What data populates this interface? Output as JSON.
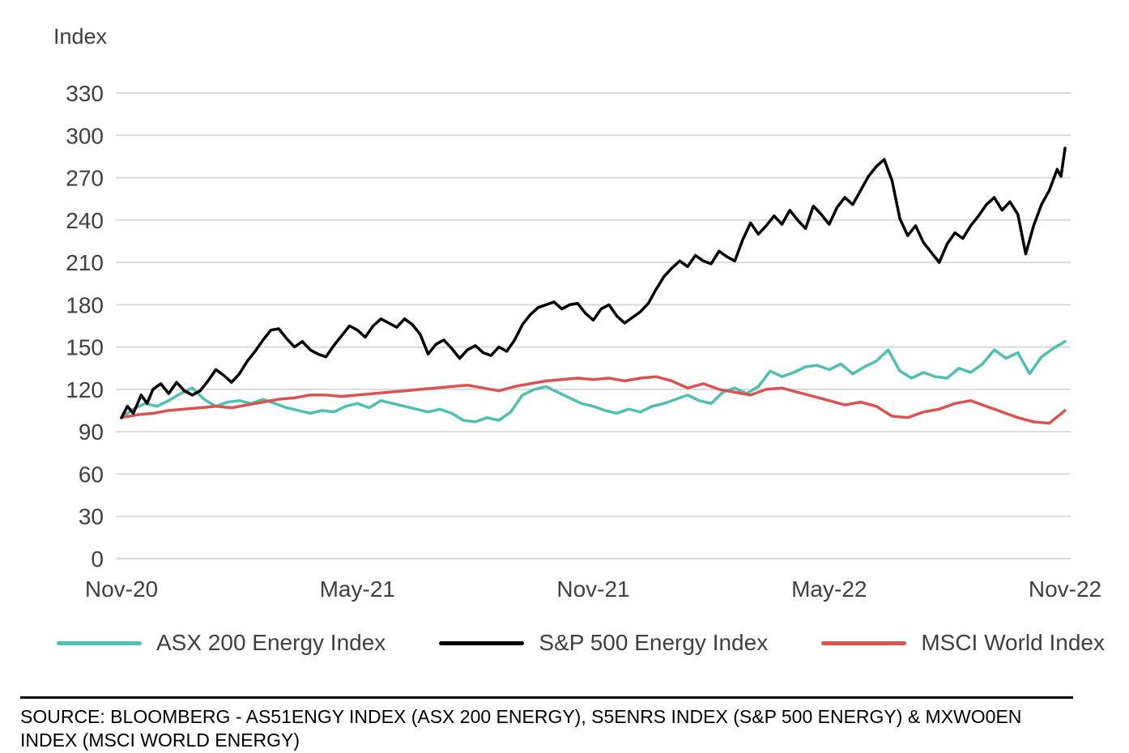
{
  "chart_data": {
    "type": "line",
    "title": "",
    "ylabel": "Index",
    "xlabel": "",
    "ylim": [
      0,
      330
    ],
    "ytick_step": 30,
    "xlim": [
      0,
      24
    ],
    "x_unit": "months-since-Nov-20",
    "grid": "horizontal",
    "legend_position": "bottom",
    "colors": {
      "grid": "#d9d9d9",
      "axis_text": "#404040"
    },
    "xticks": [
      {
        "pos": 0,
        "label": "Nov-20"
      },
      {
        "pos": 6,
        "label": "May-21"
      },
      {
        "pos": 12,
        "label": "Nov-21"
      },
      {
        "pos": 18,
        "label": "May-22"
      },
      {
        "pos": 24,
        "label": "Nov-22"
      }
    ],
    "draw_order": [
      0,
      2,
      1
    ],
    "series": [
      {
        "name": "ASX 200 Energy Index",
        "color": "#4fbfb2",
        "points": [
          [
            0,
            100
          ],
          [
            0.3,
            106
          ],
          [
            0.6,
            110
          ],
          [
            0.9,
            108
          ],
          [
            1.2,
            112
          ],
          [
            1.5,
            117
          ],
          [
            1.8,
            121
          ],
          [
            2.1,
            113
          ],
          [
            2.4,
            108
          ],
          [
            2.7,
            111
          ],
          [
            3,
            112
          ],
          [
            3.3,
            110
          ],
          [
            3.6,
            113
          ],
          [
            3.9,
            110
          ],
          [
            4.2,
            107
          ],
          [
            4.5,
            105
          ],
          [
            4.8,
            103
          ],
          [
            5.1,
            105
          ],
          [
            5.4,
            104
          ],
          [
            5.7,
            108
          ],
          [
            6,
            110
          ],
          [
            6.3,
            107
          ],
          [
            6.6,
            112
          ],
          [
            6.9,
            110
          ],
          [
            7.2,
            108
          ],
          [
            7.5,
            106
          ],
          [
            7.8,
            104
          ],
          [
            8.1,
            106
          ],
          [
            8.4,
            103
          ],
          [
            8.7,
            98
          ],
          [
            9,
            97
          ],
          [
            9.3,
            100
          ],
          [
            9.6,
            98
          ],
          [
            9.9,
            104
          ],
          [
            10.2,
            116
          ],
          [
            10.5,
            120
          ],
          [
            10.8,
            122
          ],
          [
            11.1,
            118
          ],
          [
            11.4,
            114
          ],
          [
            11.7,
            110
          ],
          [
            12,
            108
          ],
          [
            12.3,
            105
          ],
          [
            12.6,
            103
          ],
          [
            12.9,
            106
          ],
          [
            13.2,
            104
          ],
          [
            13.5,
            108
          ],
          [
            13.8,
            110
          ],
          [
            14.1,
            113
          ],
          [
            14.4,
            116
          ],
          [
            14.7,
            112
          ],
          [
            15,
            110
          ],
          [
            15.3,
            118
          ],
          [
            15.6,
            121
          ],
          [
            15.9,
            117
          ],
          [
            16.2,
            122
          ],
          [
            16.5,
            133
          ],
          [
            16.8,
            129
          ],
          [
            17.1,
            132
          ],
          [
            17.4,
            136
          ],
          [
            17.7,
            137
          ],
          [
            18,
            134
          ],
          [
            18.3,
            138
          ],
          [
            18.6,
            131
          ],
          [
            18.9,
            136
          ],
          [
            19.2,
            140
          ],
          [
            19.5,
            148
          ],
          [
            19.8,
            133
          ],
          [
            20.1,
            128
          ],
          [
            20.4,
            132
          ],
          [
            20.7,
            129
          ],
          [
            21,
            128
          ],
          [
            21.3,
            135
          ],
          [
            21.6,
            132
          ],
          [
            21.9,
            138
          ],
          [
            22.2,
            148
          ],
          [
            22.5,
            142
          ],
          [
            22.8,
            146
          ],
          [
            23.1,
            131
          ],
          [
            23.4,
            143
          ],
          [
            23.7,
            149
          ],
          [
            24,
            154
          ]
        ]
      },
      {
        "name": "S&P 500 Energy Index",
        "color": "#000000",
        "points": [
          [
            0,
            100
          ],
          [
            0.15,
            108
          ],
          [
            0.3,
            103
          ],
          [
            0.5,
            116
          ],
          [
            0.65,
            110
          ],
          [
            0.8,
            120
          ],
          [
            1,
            124
          ],
          [
            1.2,
            117
          ],
          [
            1.4,
            125
          ],
          [
            1.6,
            119
          ],
          [
            1.8,
            116
          ],
          [
            2,
            119
          ],
          [
            2.2,
            126
          ],
          [
            2.4,
            134
          ],
          [
            2.6,
            130
          ],
          [
            2.8,
            125
          ],
          [
            3,
            131
          ],
          [
            3.2,
            140
          ],
          [
            3.4,
            147
          ],
          [
            3.6,
            155
          ],
          [
            3.8,
            162
          ],
          [
            4,
            163
          ],
          [
            4.2,
            156
          ],
          [
            4.4,
            150
          ],
          [
            4.6,
            154
          ],
          [
            4.8,
            148
          ],
          [
            5,
            145
          ],
          [
            5.2,
            143
          ],
          [
            5.4,
            151
          ],
          [
            5.6,
            158
          ],
          [
            5.8,
            165
          ],
          [
            6,
            162
          ],
          [
            6.2,
            157
          ],
          [
            6.4,
            165
          ],
          [
            6.6,
            170
          ],
          [
            6.8,
            167
          ],
          [
            7,
            164
          ],
          [
            7.2,
            170
          ],
          [
            7.4,
            166
          ],
          [
            7.6,
            159
          ],
          [
            7.8,
            145
          ],
          [
            8,
            152
          ],
          [
            8.2,
            155
          ],
          [
            8.4,
            149
          ],
          [
            8.6,
            142
          ],
          [
            8.8,
            148
          ],
          [
            9,
            151
          ],
          [
            9.2,
            146
          ],
          [
            9.4,
            144
          ],
          [
            9.6,
            150
          ],
          [
            9.8,
            147
          ],
          [
            10,
            155
          ],
          [
            10.2,
            166
          ],
          [
            10.4,
            173
          ],
          [
            10.6,
            178
          ],
          [
            10.8,
            180
          ],
          [
            11,
            182
          ],
          [
            11.2,
            177
          ],
          [
            11.4,
            180
          ],
          [
            11.6,
            181
          ],
          [
            11.8,
            174
          ],
          [
            12,
            169
          ],
          [
            12.2,
            177
          ],
          [
            12.4,
            180
          ],
          [
            12.6,
            172
          ],
          [
            12.8,
            167
          ],
          [
            13,
            171
          ],
          [
            13.2,
            175
          ],
          [
            13.4,
            181
          ],
          [
            13.6,
            191
          ],
          [
            13.8,
            200
          ],
          [
            14,
            206
          ],
          [
            14.2,
            211
          ],
          [
            14.4,
            207
          ],
          [
            14.6,
            215
          ],
          [
            14.8,
            211
          ],
          [
            15,
            209
          ],
          [
            15.2,
            218
          ],
          [
            15.4,
            214
          ],
          [
            15.6,
            211
          ],
          [
            15.8,
            226
          ],
          [
            16,
            238
          ],
          [
            16.2,
            230
          ],
          [
            16.4,
            236
          ],
          [
            16.6,
            243
          ],
          [
            16.8,
            237
          ],
          [
            17,
            247
          ],
          [
            17.2,
            240
          ],
          [
            17.4,
            234
          ],
          [
            17.6,
            250
          ],
          [
            17.8,
            244
          ],
          [
            18,
            237
          ],
          [
            18.2,
            249
          ],
          [
            18.4,
            256
          ],
          [
            18.6,
            251
          ],
          [
            18.8,
            261
          ],
          [
            19,
            271
          ],
          [
            19.2,
            278
          ],
          [
            19.4,
            283
          ],
          [
            19.6,
            268
          ],
          [
            19.8,
            241
          ],
          [
            20,
            229
          ],
          [
            20.2,
            236
          ],
          [
            20.4,
            224
          ],
          [
            20.6,
            217
          ],
          [
            20.8,
            210
          ],
          [
            21,
            223
          ],
          [
            21.2,
            231
          ],
          [
            21.4,
            227
          ],
          [
            21.6,
            236
          ],
          [
            21.8,
            243
          ],
          [
            22,
            251
          ],
          [
            22.2,
            256
          ],
          [
            22.4,
            247
          ],
          [
            22.6,
            253
          ],
          [
            22.8,
            244
          ],
          [
            23,
            216
          ],
          [
            23.2,
            236
          ],
          [
            23.4,
            251
          ],
          [
            23.6,
            261
          ],
          [
            23.8,
            276
          ],
          [
            23.9,
            271
          ],
          [
            24,
            291
          ]
        ]
      },
      {
        "name": "MSCI World Index",
        "color": "#d9534f",
        "points": [
          [
            0,
            100
          ],
          [
            0.4,
            102
          ],
          [
            0.8,
            103
          ],
          [
            1.2,
            105
          ],
          [
            1.6,
            106
          ],
          [
            2,
            107
          ],
          [
            2.4,
            108
          ],
          [
            2.8,
            107
          ],
          [
            3.2,
            109
          ],
          [
            3.6,
            111
          ],
          [
            4,
            113
          ],
          [
            4.4,
            114
          ],
          [
            4.8,
            116
          ],
          [
            5.2,
            116
          ],
          [
            5.6,
            115
          ],
          [
            6,
            116
          ],
          [
            6.4,
            117
          ],
          [
            6.8,
            118
          ],
          [
            7.2,
            119
          ],
          [
            7.6,
            120
          ],
          [
            8,
            121
          ],
          [
            8.4,
            122
          ],
          [
            8.8,
            123
          ],
          [
            9.2,
            121
          ],
          [
            9.6,
            119
          ],
          [
            10,
            122
          ],
          [
            10.4,
            124
          ],
          [
            10.8,
            126
          ],
          [
            11.2,
            127
          ],
          [
            11.6,
            128
          ],
          [
            12,
            127
          ],
          [
            12.4,
            128
          ],
          [
            12.8,
            126
          ],
          [
            13.2,
            128
          ],
          [
            13.6,
            129
          ],
          [
            14,
            126
          ],
          [
            14.4,
            121
          ],
          [
            14.8,
            124
          ],
          [
            15.2,
            120
          ],
          [
            15.6,
            118
          ],
          [
            16,
            116
          ],
          [
            16.4,
            120
          ],
          [
            16.8,
            121
          ],
          [
            17.2,
            118
          ],
          [
            17.6,
            115
          ],
          [
            18,
            112
          ],
          [
            18.4,
            109
          ],
          [
            18.8,
            111
          ],
          [
            19.2,
            108
          ],
          [
            19.6,
            101
          ],
          [
            20,
            100
          ],
          [
            20.4,
            104
          ],
          [
            20.8,
            106
          ],
          [
            21.2,
            110
          ],
          [
            21.6,
            112
          ],
          [
            22,
            108
          ],
          [
            22.4,
            104
          ],
          [
            22.8,
            100
          ],
          [
            23.2,
            97
          ],
          [
            23.6,
            96
          ],
          [
            24,
            105
          ]
        ]
      }
    ]
  },
  "source": {
    "text": "SOURCE: BLOOMBERG - AS51ENGY INDEX (ASX 200 ENERGY), S5ENRS INDEX (S&P 500 ENERGY) & MXWO0EN INDEX (MSCI WORLD ENERGY)"
  }
}
